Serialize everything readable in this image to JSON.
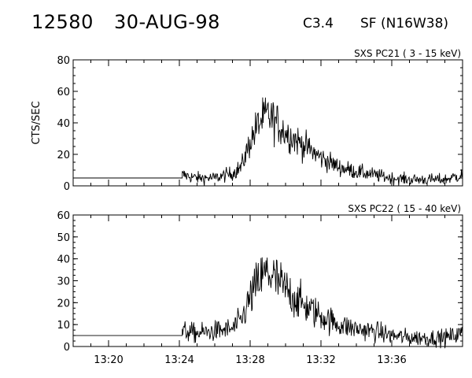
{
  "header": {
    "event_id": "12580",
    "date": "30-AUG-98",
    "goes_class": "C3.4",
    "flare_info": "SF (N16W38)"
  },
  "chart_data": [
    {
      "type": "line",
      "title": "SXS PC21  (  3 - 15 keV)",
      "ylabel": "CTS/SEC",
      "xlabel": "",
      "ylim": [
        0,
        80
      ],
      "yticks": [
        0,
        20,
        40,
        60,
        80
      ],
      "xlim": [
        "13:18",
        "13:40"
      ],
      "xticks": [
        "13:20",
        "13:24",
        "13:28",
        "13:32",
        "13:36"
      ],
      "series": [
        {
          "x": [
            "13:18",
            "13:24:10",
            "13:24:10",
            "13:25",
            "13:26",
            "13:27",
            "13:27:30",
            "13:28",
            "13:28:30",
            "13:29",
            "13:29:30",
            "13:30",
            "13:31",
            "13:32",
            "13:33",
            "13:34",
            "13:35",
            "13:36",
            "13:37",
            "13:38",
            "13:39",
            "13:40"
          ],
          "values": [
            5,
            5,
            7,
            5,
            5,
            8,
            12,
            28,
            40,
            45,
            40,
            34,
            26,
            18,
            12,
            9,
            7,
            5,
            4,
            4,
            4,
            7
          ]
        }
      ]
    },
    {
      "type": "line",
      "title": "SXS PC22  ( 15 - 40 keV)",
      "ylabel": "",
      "xlabel": "",
      "ylim": [
        0,
        60
      ],
      "yticks": [
        0,
        10,
        20,
        30,
        40,
        50,
        60
      ],
      "xlim": [
        "13:18",
        "13:40"
      ],
      "xticks": [
        "13:20",
        "13:24",
        "13:28",
        "13:32",
        "13:36"
      ],
      "series": [
        {
          "x": [
            "13:18",
            "13:24:10",
            "13:24:10",
            "13:25",
            "13:26",
            "13:27",
            "13:27:30",
            "13:28",
            "13:28:30",
            "13:29",
            "13:29:30",
            "13:30",
            "13:31",
            "13:32",
            "13:33",
            "13:34",
            "13:35",
            "13:36",
            "13:37",
            "13:38",
            "13:39",
            "13:40"
          ],
          "values": [
            5,
            5,
            7,
            6,
            7,
            8,
            12,
            22,
            30,
            34,
            30,
            26,
            19,
            14,
            10,
            8,
            7,
            5,
            4,
            4,
            4,
            6
          ]
        }
      ]
    }
  ]
}
